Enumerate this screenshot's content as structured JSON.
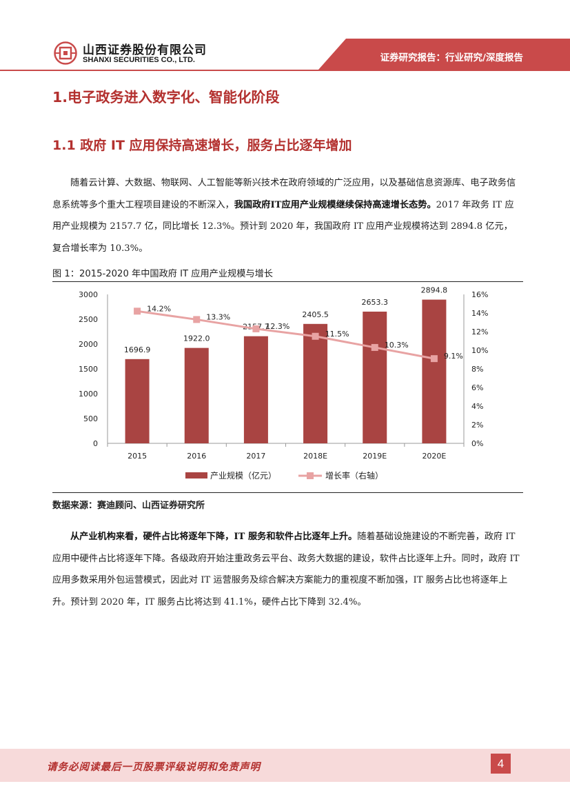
{
  "header": {
    "company_cn": "山西证券股份有限公司",
    "company_en": "SHANXI SECURITIES CO., LTD.",
    "report_type": "证券研究报告：行业研究/深度报告"
  },
  "section": {
    "title": "1.电子政务进入数字化、智能化阶段",
    "subsection": "1.1  政府 IT 应用保持高速增长，服务占比逐年增加"
  },
  "paragraph1": {
    "text_a": "随着云计算、大数据、物联网、人工智能等新兴技术在政府领域的广泛应用，以及基础信息资源库、电子政务信息系统等多个重大工程项目建设的不断深入，",
    "bold": "我国政府IT应用产业规模继续保持高速增长态势。",
    "text_b": "2017 年政务 IT 应用产业规模为 2157.7 亿，同比增长 12.3%。预计到 2020 年，我国政府 IT 应用产业规模将达到 2894.8 亿元，复合增长率为 10.3%。"
  },
  "figure": {
    "title": "图 1：2015-2020 年中国政府 IT 应用产业规模与增长",
    "source": "数据来源：赛迪顾问、山西证券研究所"
  },
  "chart_data": {
    "type": "bar",
    "categories": [
      "2015",
      "2016",
      "2017",
      "2018E",
      "2019E",
      "2020E"
    ],
    "series": [
      {
        "name": "产业规模（亿元）",
        "kind": "bar",
        "axis": "left",
        "values": [
          1696.9,
          1922.0,
          2157.7,
          2405.5,
          2653.3,
          2894.8
        ],
        "labels": [
          "1696.9",
          "1922.0",
          "2157.7",
          "2405.5",
          "2653.3",
          "2894.8"
        ]
      },
      {
        "name": "增长率（右轴）",
        "kind": "line",
        "axis": "right",
        "values": [
          14.2,
          13.3,
          12.3,
          11.5,
          10.3,
          9.1
        ],
        "labels": [
          "14.2%",
          "13.3%",
          "12.3%",
          "11.5%",
          "10.3%",
          "9.1%"
        ]
      }
    ],
    "ylim_left": [
      0,
      3000
    ],
    "ylim_right": [
      0,
      16
    ],
    "left_ticks": [
      "0",
      "500",
      "1000",
      "1500",
      "2000",
      "2500",
      "3000"
    ],
    "right_ticks": [
      "0%",
      "2%",
      "4%",
      "6%",
      "8%",
      "10%",
      "12%",
      "14%",
      "16%"
    ],
    "legend": "bottom",
    "bar_color": "#a94442",
    "line_color": "#e8a3a3"
  },
  "paragraph2": {
    "bold": "从产业机构来看，硬件占比将逐年下降，IT 服务和软件占比逐年上升。",
    "text": "随着基础设施建设的不断完善，政府 IT 应用中硬件占比将逐年下降。各级政府开始注重政务云平台、政务大数据的建设，软件占比逐年上升。同时，政府 IT 应用多数采用外包运营模式，因此对 IT 运营服务及综合解决方案能力的重视度不断加强，IT 服务占比也将逐年上升。预计到 2020 年，IT 服务占比将达到 41.1%，硬件占比下降到 32.4%。"
  },
  "footer": {
    "disclaimer": "请务必阅读最后一页股票评级说明和免责声明",
    "page": "4"
  },
  "colors": {
    "brand_red": "#c94a4a",
    "heading_red": "#b3302e"
  }
}
